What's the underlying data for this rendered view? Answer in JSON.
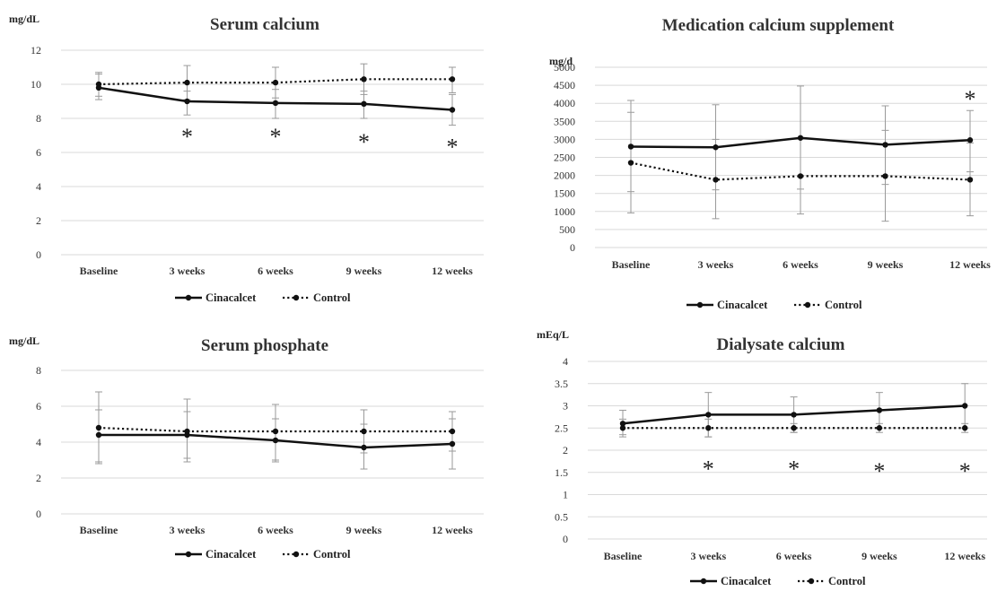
{
  "chart_data": [
    {
      "type": "line",
      "title": "Serum calcium",
      "ylabel": "mg/dL",
      "categories": [
        "Baseline",
        "3 weeks",
        "6 weeks",
        "9 weeks",
        "12 weeks"
      ],
      "ylim": [
        0,
        12
      ],
      "yticks": [
        0,
        2,
        4,
        6,
        8,
        10,
        12
      ],
      "series": [
        {
          "name": "Cinacalcet",
          "style": "solid",
          "values": [
            9.8,
            9.0,
            8.9,
            8.85,
            8.5
          ],
          "err_low": [
            9.1,
            8.2,
            8.0,
            8.0,
            7.6
          ],
          "err_high": [
            10.6,
            9.6,
            9.7,
            9.6,
            9.4
          ]
        },
        {
          "name": "Control",
          "style": "dotted",
          "values": [
            10.0,
            10.1,
            10.1,
            10.3,
            10.3
          ],
          "err_low": [
            9.3,
            9.1,
            9.2,
            9.4,
            9.5
          ],
          "err_high": [
            10.7,
            11.1,
            11.0,
            11.2,
            11.0
          ]
        }
      ],
      "asterisks": [
        false,
        true,
        true,
        true,
        true
      ],
      "asterisk_values": [
        null,
        7.1,
        7.1,
        6.8,
        6.5
      ],
      "legend_placement": "bottom",
      "grid": true
    },
    {
      "type": "line",
      "title": "Medication calcium supplement",
      "ylabel": "mg/d",
      "categories": [
        "Baseline",
        "3 weeks",
        "6 weeks",
        "9 weeks",
        "12 weeks"
      ],
      "ylim": [
        0,
        5000
      ],
      "yticks": [
        0,
        500,
        1000,
        1500,
        2000,
        2500,
        3000,
        3500,
        4000,
        4500,
        5000
      ],
      "series": [
        {
          "name": "Cinacalcet",
          "style": "solid",
          "values": [
            2800,
            2780,
            3040,
            2850,
            2980
          ],
          "err_low": [
            1550,
            1600,
            1620,
            1750,
            2100
          ],
          "err_high": [
            4080,
            3960,
            4480,
            3930,
            3800
          ]
        },
        {
          "name": "Control",
          "style": "dotted",
          "values": [
            2350,
            1880,
            1980,
            1980,
            1880
          ],
          "err_low": [
            960,
            800,
            930,
            730,
            880
          ],
          "err_high": [
            3750,
            3000,
            3020,
            3250,
            2900
          ]
        }
      ],
      "asterisks": [
        false,
        false,
        false,
        false,
        true
      ],
      "asterisk_values": [
        null,
        null,
        null,
        null,
        4200
      ],
      "legend_placement": "bottom",
      "grid": true
    },
    {
      "type": "line",
      "title": "Serum phosphate",
      "ylabel": "mg/dL",
      "categories": [
        "Baseline",
        "3 weeks",
        "6 weeks",
        "9 weeks",
        "12 weeks"
      ],
      "ylim": [
        0,
        8
      ],
      "yticks": [
        0,
        2,
        4,
        6,
        8
      ],
      "series": [
        {
          "name": "Cinacalcet",
          "style": "solid",
          "values": [
            4.4,
            4.4,
            4.1,
            3.7,
            3.9
          ],
          "err_low": [
            2.8,
            2.9,
            2.9,
            2.5,
            2.5
          ],
          "err_high": [
            5.8,
            5.7,
            5.3,
            5.0,
            5.3
          ]
        },
        {
          "name": "Control",
          "style": "dotted",
          "values": [
            4.8,
            4.6,
            4.6,
            4.6,
            4.6
          ],
          "err_low": [
            2.9,
            3.1,
            3.0,
            3.4,
            3.5
          ],
          "err_high": [
            6.8,
            6.4,
            6.1,
            5.8,
            5.7
          ]
        }
      ],
      "asterisks": [
        false,
        false,
        false,
        false,
        false
      ],
      "asterisk_values": [
        null,
        null,
        null,
        null,
        null
      ],
      "legend_placement": "bottom",
      "grid": true
    },
    {
      "type": "line",
      "title": "Dialysate calcium",
      "ylabel": "mEq/L",
      "categories": [
        "Baseline",
        "3 weeks",
        "6 weeks",
        "9 weeks",
        "12 weeks"
      ],
      "ylim": [
        0,
        4
      ],
      "yticks": [
        0,
        0.5,
        1,
        1.5,
        2,
        2.5,
        3,
        3.5,
        4
      ],
      "series": [
        {
          "name": "Cinacalcet",
          "style": "solid",
          "values": [
            2.6,
            2.8,
            2.8,
            2.9,
            3.0
          ],
          "err_low": [
            2.35,
            2.3,
            2.4,
            2.5,
            2.5
          ],
          "err_high": [
            2.9,
            3.3,
            3.2,
            3.3,
            3.5
          ]
        },
        {
          "name": "Control",
          "style": "dotted",
          "values": [
            2.5,
            2.5,
            2.5,
            2.5,
            2.5
          ],
          "err_low": [
            2.3,
            2.3,
            2.4,
            2.4,
            2.4
          ],
          "err_high": [
            2.7,
            2.7,
            2.6,
            2.6,
            2.6
          ]
        }
      ],
      "asterisks": [
        false,
        true,
        true,
        true,
        true
      ],
      "asterisk_values": [
        null,
        1.65,
        1.65,
        1.6,
        1.6
      ],
      "legend_placement": "bottom",
      "grid": true
    }
  ],
  "colors": {
    "cinacalcet": "#111111",
    "control": "#111111",
    "grid": "#d9d9d9",
    "error_bar": "#9a9a9a"
  },
  "asterisk_glyph": "*"
}
